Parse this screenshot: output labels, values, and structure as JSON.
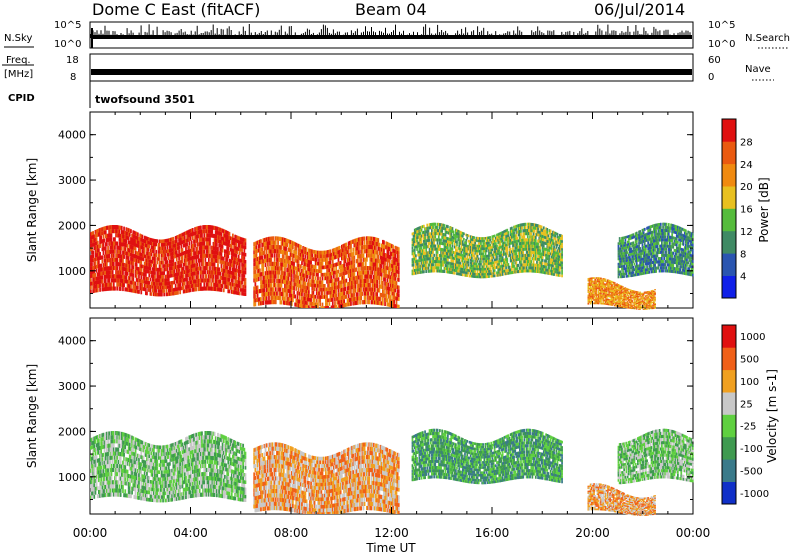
{
  "header": {
    "station": "Dome C East (fitACF)",
    "beam": "Beam 04",
    "date": "06/Jul/2014"
  },
  "noise_panel": {
    "left_label": "N.Sky",
    "left_ticks": [
      "10^5",
      "10^0"
    ],
    "right_ticks": [
      "10^5",
      "10^0"
    ],
    "right_label": "N.Search"
  },
  "freq_panel": {
    "left_label_line1": "Freq.",
    "left_label_line2": "[MHz]",
    "left_ticks": [
      "18",
      "8"
    ],
    "right_ticks": [
      "60",
      "0"
    ],
    "right_label": "Nave"
  },
  "cpid": {
    "label": "CPID",
    "value": "twofsound 3501"
  },
  "chart_data": [
    {
      "type": "heatmap",
      "name": "power",
      "ylabel": "Slant Range [km]",
      "yticks": [
        "1000",
        "2000",
        "3000",
        "4000"
      ],
      "xlabel": "",
      "colorbar": {
        "label": "Power [dB]",
        "tick_labels": [
          "4",
          "8",
          "12",
          "16",
          "20",
          "24",
          "28"
        ],
        "colors": [
          "#1020e8",
          "#2a55b0",
          "#3f8a64",
          "#55bc3c",
          "#e8c020",
          "#f08a10",
          "#ea5a10",
          "#e01010"
        ]
      },
      "features": [
        {
          "t0": 0.0,
          "t1": 6.2,
          "r0": 500,
          "r1": 1850,
          "level": 7
        },
        {
          "t0": 6.5,
          "t1": 12.3,
          "r0": 200,
          "r1": 1600,
          "level": 6
        },
        {
          "t0": 12.8,
          "t1": 18.8,
          "r0": 900,
          "r1": 1900,
          "level": 3
        },
        {
          "t0": 19.8,
          "t1": 22.5,
          "r0": 200,
          "r1": 700,
          "level": 5
        },
        {
          "t0": 21.0,
          "t1": 24.0,
          "r0": 900,
          "r1": 1900,
          "level": 2
        }
      ]
    },
    {
      "type": "heatmap",
      "name": "velocity",
      "ylabel": "Slant Range [km]",
      "yticks": [
        "1000",
        "2000",
        "3000",
        "4000"
      ],
      "xlabel": "Time UT",
      "xticks": [
        "00:00",
        "04:00",
        "08:00",
        "12:00",
        "16:00",
        "20:00",
        "00:00"
      ],
      "colorbar": {
        "label": "Velocity [m s-1]",
        "tick_labels": [
          "1000",
          "500",
          "100",
          "25",
          "-25",
          "-100",
          "-500",
          "-1000"
        ],
        "colors": [
          "#1030c8",
          "#3a7a8a",
          "#3f9a50",
          "#5fd040",
          "#c8c8c8",
          "#f0a020",
          "#f06018",
          "#e01010"
        ]
      },
      "features": [
        {
          "t0": 0.0,
          "t1": 6.2,
          "r0": 500,
          "r1": 1850,
          "level": 3
        },
        {
          "t0": 6.5,
          "t1": 12.3,
          "r0": 200,
          "r1": 1600,
          "level": 5
        },
        {
          "t0": 12.8,
          "t1": 18.8,
          "r0": 900,
          "r1": 1900,
          "level": 2
        },
        {
          "t0": 19.8,
          "t1": 22.5,
          "r0": 200,
          "r1": 700,
          "level": 5
        },
        {
          "t0": 21.0,
          "t1": 24.0,
          "r0": 900,
          "r1": 1900,
          "level": 3
        }
      ]
    }
  ]
}
